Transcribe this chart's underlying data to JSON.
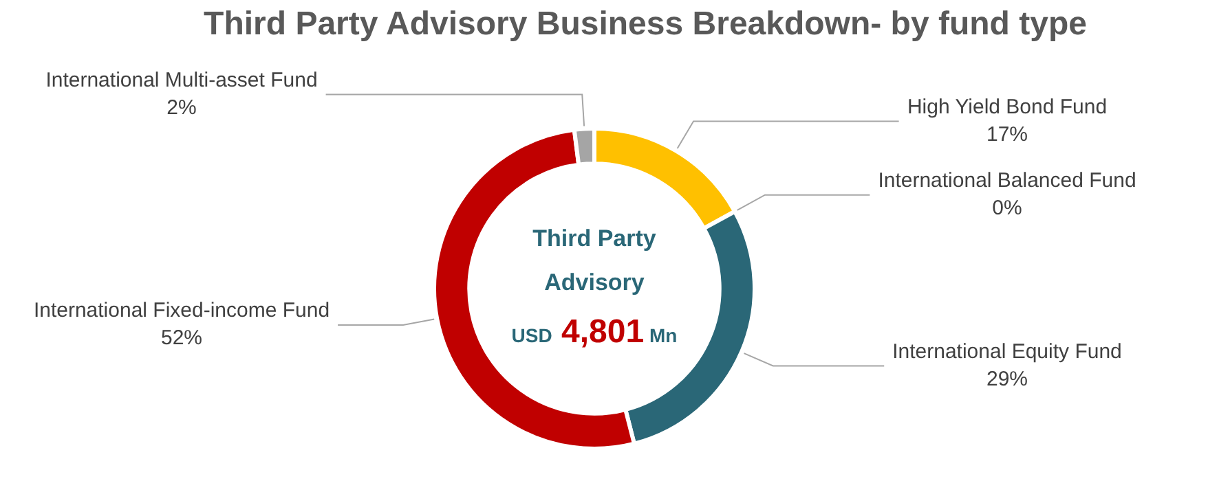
{
  "chart_data": {
    "type": "donut",
    "title": "Third Party Advisory Business Breakdown-  by fund type",
    "categories": [
      "High Yield Bond Fund",
      "International Balanced Fund",
      "International Equity Fund",
      "International Fixed-income Fund",
      "International Multi-asset Fund"
    ],
    "values": [
      17,
      0,
      29,
      52,
      2
    ],
    "value_labels": [
      "17%",
      "0%",
      "29%",
      "52%",
      "2%"
    ],
    "colors": [
      "#ffc000",
      "#4472c4",
      "#2a6777",
      "#c00000",
      "#a5a5a5"
    ],
    "annotations": [
      "Third Party Advisory",
      "USD 4,801 Mn"
    ],
    "legend": false
  }
}
